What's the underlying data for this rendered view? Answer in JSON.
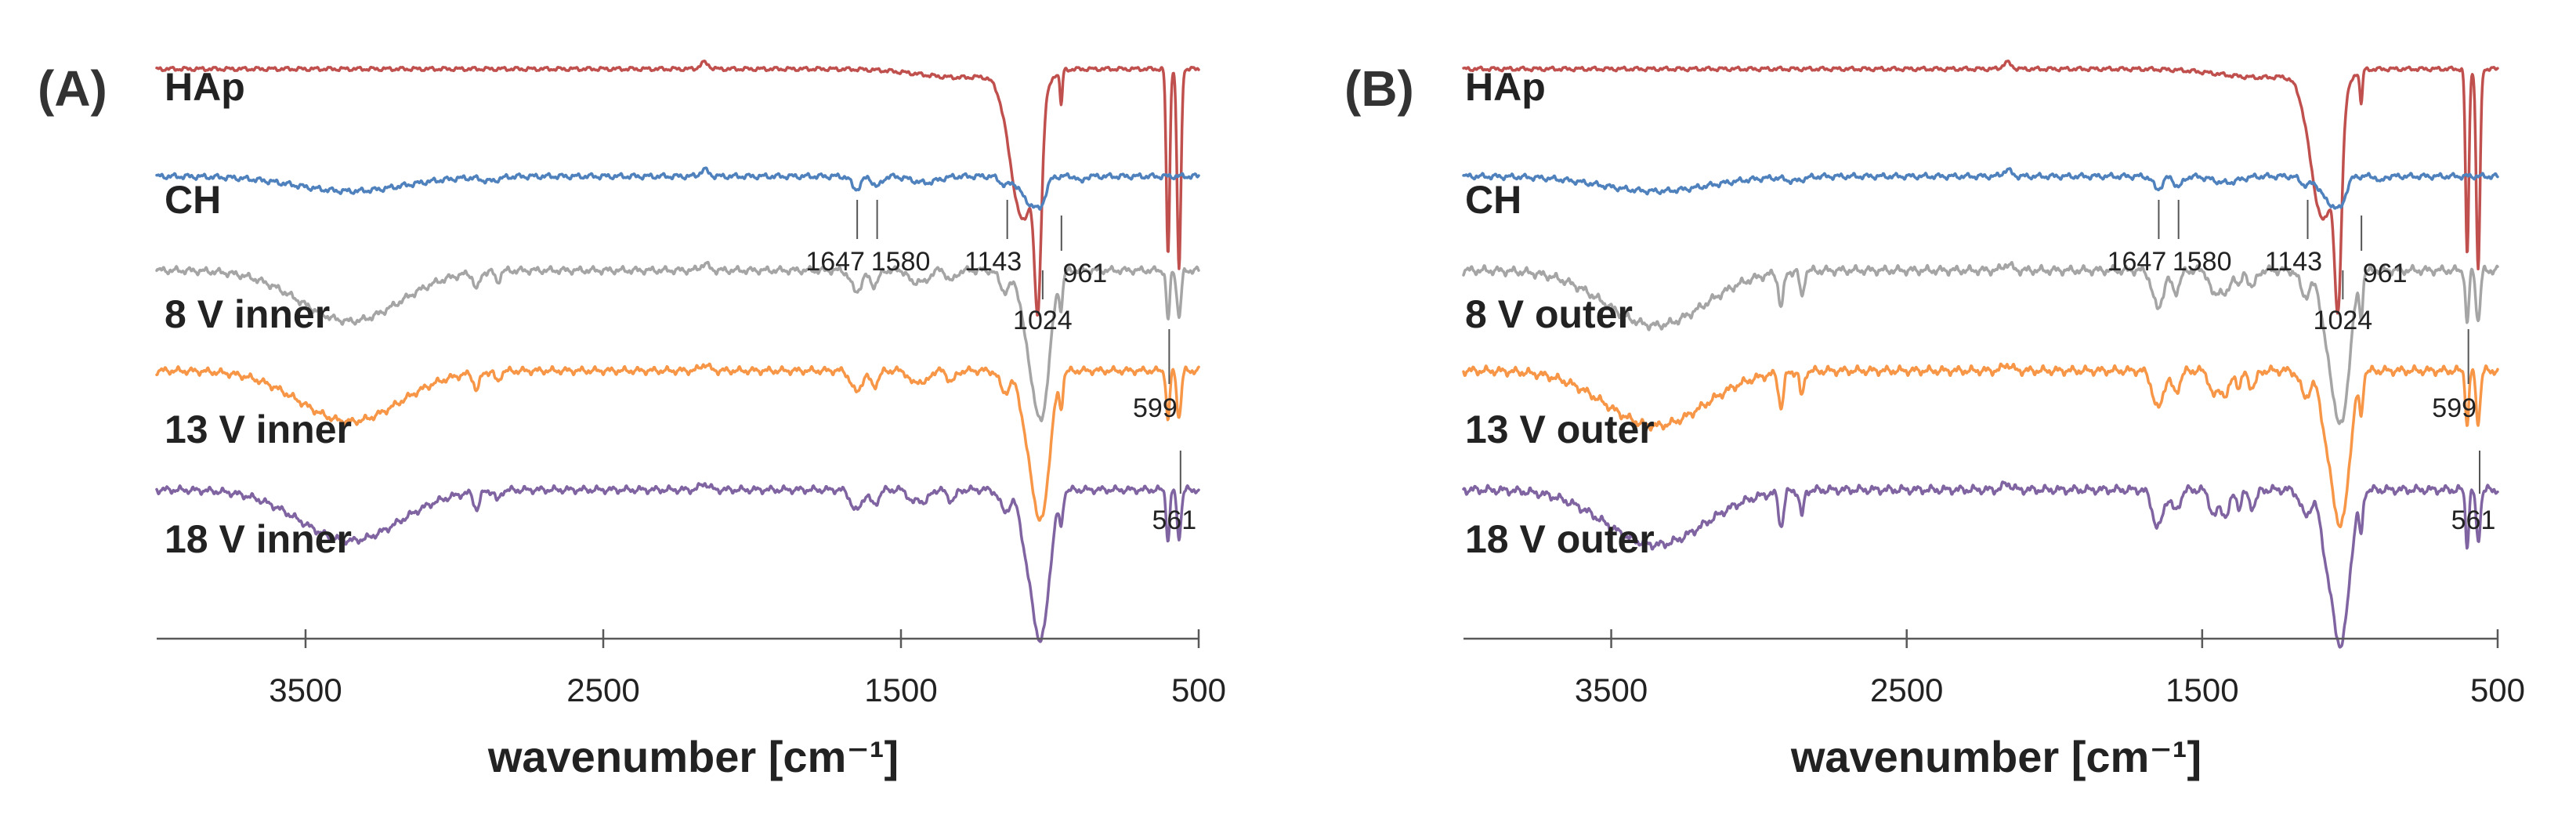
{
  "chart_data": [
    {
      "type": "line",
      "panel_label": "(A)",
      "xlabel": "wavenumber [cm⁻¹]",
      "ylabel": "",
      "xlim": [
        4000,
        500
      ],
      "x_reversed": true,
      "grid": false,
      "x_ticks": [
        3500,
        2500,
        1500,
        500
      ],
      "x_tick_labels": [
        "3500",
        "2500",
        "1500",
        "500"
      ],
      "series": [
        {
          "name": "HAp",
          "color": "#c0504d",
          "baseline": 0,
          "noise": 0.6,
          "gap": 0,
          "bands": "hap"
        },
        {
          "name": "CH",
          "color": "#4f81bd",
          "baseline": 1,
          "noise": 0.8,
          "gap": 0,
          "bands": "ch"
        },
        {
          "name": "8 V inner",
          "color": "#a5a5a5",
          "baseline": 2,
          "noise": 1.0,
          "gap": 1,
          "bands": "composite_inner"
        },
        {
          "name": "13 V inner",
          "color": "#f79646",
          "baseline": 3,
          "noise": 1.0,
          "gap": 1,
          "bands": "composite_inner"
        },
        {
          "name": "18 V inner",
          "color": "#8064a2",
          "baseline": 4,
          "noise": 1.0,
          "gap": 1,
          "bands": "composite_inner"
        }
      ],
      "peak_annotations": [
        {
          "label": "1647",
          "wavenumber": 1647
        },
        {
          "label": "1580",
          "wavenumber": 1580
        },
        {
          "label": "1143",
          "wavenumber": 1143
        },
        {
          "label": "961",
          "wavenumber": 961
        },
        {
          "label": "1024",
          "wavenumber": 1024
        },
        {
          "label": "599",
          "wavenumber": 599
        },
        {
          "label": "561",
          "wavenumber": 561
        }
      ]
    },
    {
      "type": "line",
      "panel_label": "(B)",
      "xlabel": "wavenumber [cm⁻¹]",
      "ylabel": "",
      "xlim": [
        4000,
        500
      ],
      "x_reversed": true,
      "grid": false,
      "x_ticks": [
        3500,
        2500,
        1500,
        500
      ],
      "x_tick_labels": [
        "3500",
        "2500",
        "1500",
        "500"
      ],
      "series": [
        {
          "name": "HAp",
          "color": "#c0504d",
          "baseline": 0,
          "noise": 0.6,
          "gap": 0,
          "bands": "hap"
        },
        {
          "name": "CH",
          "color": "#4f81bd",
          "baseline": 1,
          "noise": 0.8,
          "gap": 0,
          "bands": "ch"
        },
        {
          "name": "8 V outer",
          "color": "#a5a5a5",
          "baseline": 2,
          "noise": 1.2,
          "gap": 1,
          "bands": "composite_outer"
        },
        {
          "name": "13 V outer",
          "color": "#f79646",
          "baseline": 3,
          "noise": 1.2,
          "gap": 1,
          "bands": "composite_outer"
        },
        {
          "name": "18 V outer",
          "color": "#8064a2",
          "baseline": 4,
          "noise": 1.2,
          "gap": 1,
          "bands": "composite_outer"
        }
      ],
      "peak_annotations": [
        {
          "label": "1647",
          "wavenumber": 1647
        },
        {
          "label": "1580",
          "wavenumber": 1580
        },
        {
          "label": "1143",
          "wavenumber": 1143
        },
        {
          "label": "961",
          "wavenumber": 961
        },
        {
          "label": "1024",
          "wavenumber": 1024
        },
        {
          "label": "599",
          "wavenumber": 599
        },
        {
          "label": "561",
          "wavenumber": 561
        }
      ]
    }
  ]
}
